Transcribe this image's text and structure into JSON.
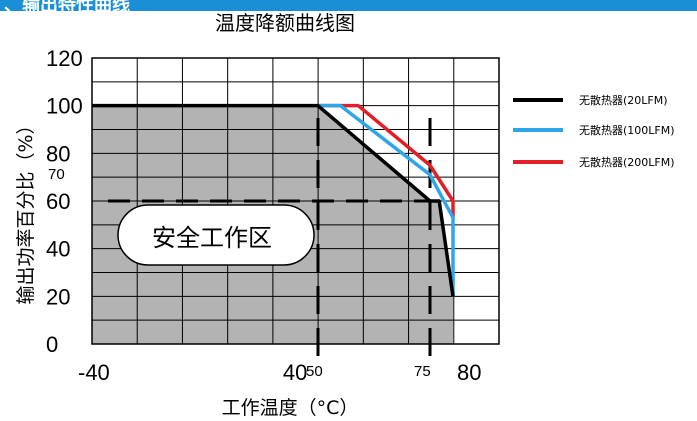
{
  "banner": {
    "text": "、输出特性曲线"
  },
  "chart_data": {
    "type": "line",
    "title": "温度降额曲线图",
    "xlabel": "工作温度（°C）",
    "ylabel": "输出功率百分比（%）",
    "xlim": [
      -40,
      80
    ],
    "ylim": [
      0,
      120
    ],
    "x_ticks": [
      "-40",
      "40",
      "50",
      "75",
      "80"
    ],
    "x_tick_values": [
      -40,
      40,
      50,
      75,
      80
    ],
    "y_ticks": [
      "0",
      "20",
      "40",
      "60",
      "70",
      "80",
      "100",
      "120"
    ],
    "y_tick_values": [
      0,
      20,
      40,
      60,
      70,
      80,
      100,
      120
    ],
    "grid": true,
    "legend_position": "right",
    "series": [
      {
        "name": "无散热器(20LFM)",
        "color": "#000000",
        "x": [
          -40,
          50,
          75,
          77,
          80
        ],
        "y": [
          100,
          100,
          60,
          60,
          20
        ]
      },
      {
        "name": "无散热器(100LFM)",
        "color": "#2ea6e8",
        "x": [
          50,
          55,
          75,
          80,
          80
        ],
        "y": [
          100,
          100,
          71,
          53,
          20
        ]
      },
      {
        "name": "无散热器(200LFM)",
        "color": "#e21f26",
        "x": [
          50,
          59,
          75,
          80,
          80
        ],
        "y": [
          100,
          100,
          75,
          60,
          53
        ]
      }
    ],
    "safe_zone_label": "安全工作区",
    "fill_color": "#b3b3b3",
    "reference_lines": {
      "horizontal_y": 60,
      "vertical_x": [
        50,
        75
      ]
    }
  }
}
